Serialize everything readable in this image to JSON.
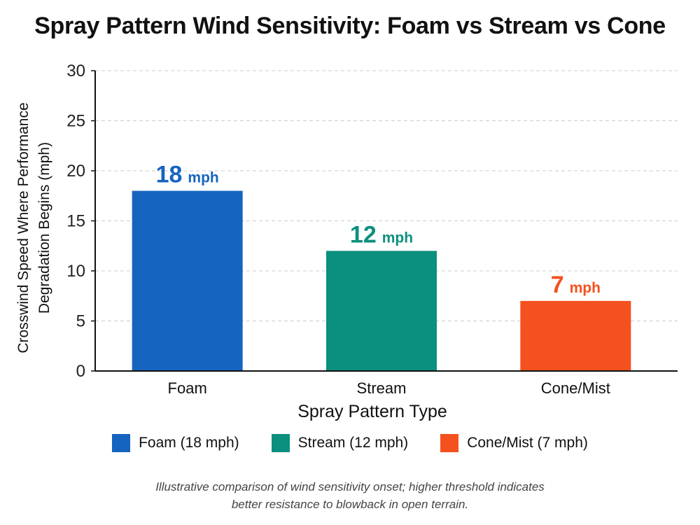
{
  "colors": {
    "foam": "#1565c0",
    "stream": "#0b8f7e",
    "cone": "#f4511e",
    "grid": "#cccccc",
    "axis": "#111111"
  },
  "caption": {
    "line1": "Illustrative comparison of wind sensitivity onset; higher threshold indicates",
    "line2": "better resistance to blowback in open terrain."
  },
  "chart_data": {
    "type": "bar",
    "title": "Spray Pattern Wind Sensitivity: Foam vs Stream vs Cone",
    "xlabel": "Spray Pattern Type",
    "ylabel_lines": [
      "Crosswind Speed Where Performance",
      "Degradation Begins (mph)"
    ],
    "categories": [
      "Foam",
      "Stream",
      "Cone/Mist"
    ],
    "values": [
      18,
      12,
      7
    ],
    "unit": "mph",
    "bar_colors": [
      "#1565c0",
      "#0b8f7e",
      "#f4511e"
    ],
    "ylim": [
      0,
      30
    ],
    "yticks": [
      0,
      5,
      10,
      15,
      20,
      25,
      30
    ],
    "grid": true,
    "legend_position": "bottom",
    "legend": [
      "Foam (18 mph)",
      "Stream (12 mph)",
      "Cone/Mist (7 mph)"
    ]
  }
}
